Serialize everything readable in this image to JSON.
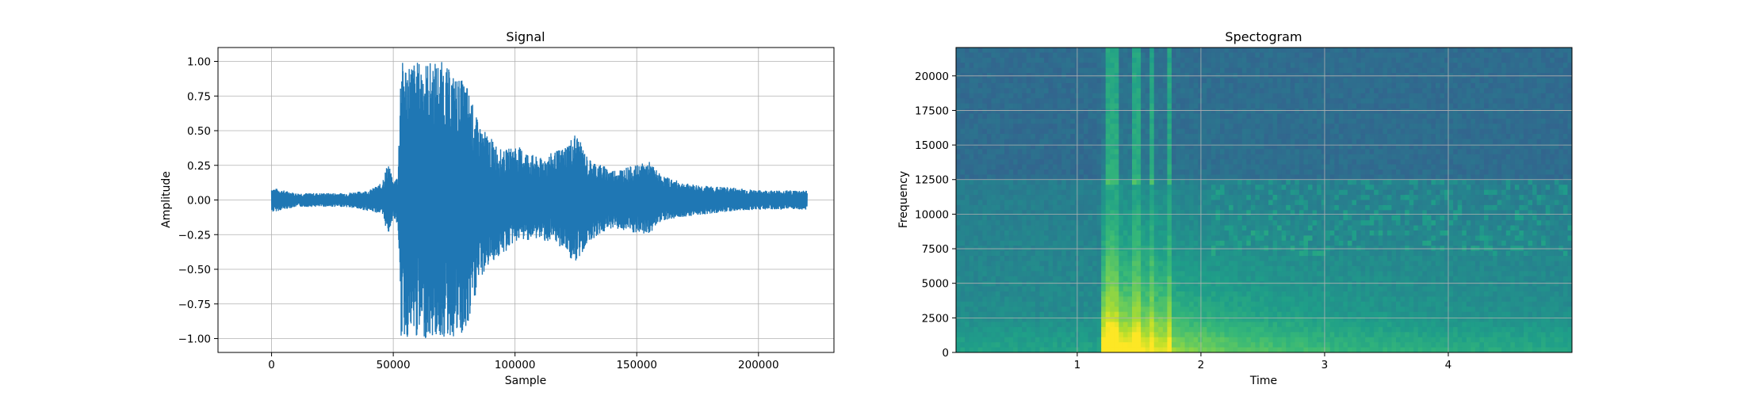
{
  "chart_data": [
    {
      "type": "line",
      "title": "Signal",
      "xlabel": "Sample",
      "ylabel": "Amplitude",
      "xlim": [
        -22000,
        231000
      ],
      "ylim": [
        -1.1,
        1.1
      ],
      "grid": true,
      "color": "#1f77b4",
      "xticks": [
        0,
        50000,
        100000,
        150000,
        200000
      ],
      "xtick_labels": [
        "0",
        "50000",
        "100000",
        "150000",
        "200000"
      ],
      "yticks": [
        1.0,
        0.75,
        0.5,
        0.25,
        0.0,
        -0.25,
        -0.5,
        -0.75,
        -1.0
      ],
      "ytick_labels": [
        "1.00",
        "0.75",
        "0.50",
        "0.25",
        "0.00",
        "−0.25",
        "−0.50",
        "−0.75",
        "−1.00"
      ],
      "series": [
        {
          "x": [
            0,
            10000,
            20000,
            30000,
            40000,
            45000,
            48000,
            50000,
            52000,
            53000,
            55000,
            60000,
            65000,
            70000,
            75000,
            80000,
            85000,
            90000,
            95000,
            100000,
            110000,
            120000,
            125000,
            130000,
            140000,
            150000,
            155000,
            160000,
            170000,
            180000,
            190000,
            200000,
            210000,
            220000
          ],
          "y_max": [
            0.09,
            0.05,
            0.05,
            0.05,
            0.07,
            0.12,
            0.28,
            0.12,
            0.2,
            1.0,
            1.0,
            1.0,
            1.0,
            1.0,
            0.9,
            0.85,
            0.55,
            0.45,
            0.35,
            0.4,
            0.3,
            0.38,
            0.49,
            0.3,
            0.22,
            0.25,
            0.28,
            0.18,
            0.12,
            0.1,
            0.09,
            0.07,
            0.07,
            0.07
          ],
          "y_min": [
            -0.09,
            -0.05,
            -0.05,
            -0.05,
            -0.08,
            -0.1,
            -0.25,
            -0.12,
            -0.2,
            -1.0,
            -1.0,
            -1.0,
            -1.0,
            -1.0,
            -1.0,
            -1.0,
            -0.6,
            -0.45,
            -0.4,
            -0.3,
            -0.28,
            -0.35,
            -0.48,
            -0.3,
            -0.2,
            -0.25,
            -0.25,
            -0.15,
            -0.12,
            -0.1,
            -0.08,
            -0.07,
            -0.07,
            -0.07
          ]
        }
      ]
    },
    {
      "type": "heatmap",
      "title": "Spectogram",
      "xlabel": "Time",
      "ylabel": "Frequency",
      "xlim": [
        0.02,
        5.0
      ],
      "ylim": [
        0,
        22050
      ],
      "grid": true,
      "colormap": "viridis",
      "xticks": [
        1,
        2,
        3,
        4
      ],
      "xtick_labels": [
        "1",
        "2",
        "3",
        "4"
      ],
      "yticks": [
        0,
        2500,
        5000,
        7500,
        10000,
        12500,
        15000,
        17500,
        20000
      ],
      "ytick_labels": [
        "0",
        "2500",
        "5000",
        "7500",
        "10000",
        "12500",
        "15000",
        "17500",
        "20000"
      ]
    }
  ]
}
